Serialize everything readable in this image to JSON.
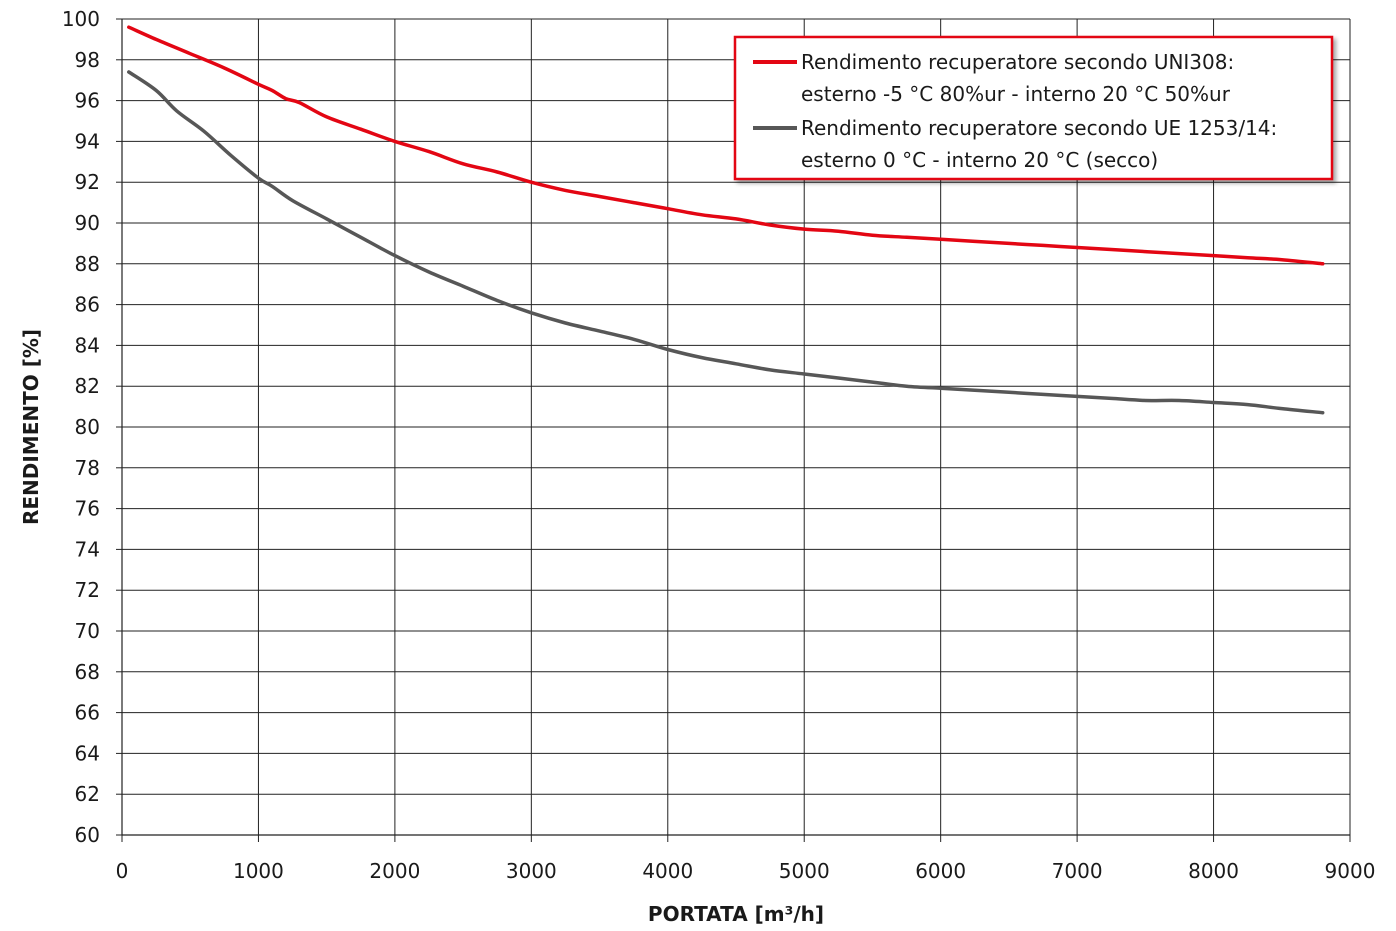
{
  "chart_data": {
    "type": "line",
    "title": "",
    "xlabel": "PORTATA [m³/h]",
    "ylabel": "RENDIMENTO [%]",
    "xlim": [
      0,
      9000
    ],
    "ylim": [
      60,
      100
    ],
    "x_ticks": [
      0,
      1000,
      2000,
      3000,
      4000,
      5000,
      6000,
      7000,
      8000,
      9000
    ],
    "y_ticks": [
      60,
      62,
      64,
      66,
      68,
      70,
      72,
      74,
      76,
      78,
      80,
      82,
      84,
      86,
      88,
      90,
      92,
      94,
      96,
      98,
      100
    ],
    "grid": true,
    "legend_position": "top-right",
    "series": [
      {
        "name": "Rendimento recuperatore secondo UNI308: esterno -5 °C 80%ur - interno 20 °C 50%ur",
        "legend_lines": [
          "Rendimento recuperatore secondo UNI308:",
          "esterno -5 °C 80%ur - interno 20 °C 50%ur"
        ],
        "color": "#e30613",
        "x": [
          50,
          250,
          500,
          750,
          1000,
          1100,
          1200,
          1300,
          1500,
          1750,
          2000,
          2250,
          2500,
          2750,
          3000,
          3250,
          3500,
          3750,
          4000,
          4250,
          4500,
          4750,
          5000,
          5250,
          5500,
          5750,
          6000,
          6250,
          6500,
          6750,
          7000,
          7250,
          7500,
          7750,
          8000,
          8250,
          8500,
          8800
        ],
        "y": [
          99.6,
          99.0,
          98.3,
          97.6,
          96.8,
          96.5,
          96.1,
          95.9,
          95.2,
          94.6,
          94.0,
          93.5,
          92.9,
          92.5,
          92.0,
          91.6,
          91.3,
          91.0,
          90.7,
          90.4,
          90.2,
          89.9,
          89.7,
          89.6,
          89.4,
          89.3,
          89.2,
          89.1,
          89.0,
          88.9,
          88.8,
          88.7,
          88.6,
          88.5,
          88.4,
          88.3,
          88.2,
          88.0
        ]
      },
      {
        "name": "Rendimento recuperatore secondo UE 1253/14: esterno 0 °C - interno 20 °C (secco)",
        "legend_lines": [
          "Rendimento recuperatore secondo UE 1253/14:",
          "esterno 0 °C - interno 20 °C (secco)"
        ],
        "color": "#575757",
        "x": [
          50,
          250,
          400,
          600,
          800,
          1000,
          1100,
          1250,
          1500,
          1750,
          2000,
          2250,
          2500,
          2750,
          3000,
          3250,
          3500,
          3750,
          4000,
          4250,
          4500,
          4750,
          5000,
          5250,
          5500,
          5750,
          6000,
          6250,
          6500,
          6750,
          7000,
          7250,
          7500,
          7750,
          8000,
          8250,
          8500,
          8800
        ],
        "y": [
          97.4,
          96.5,
          95.5,
          94.5,
          93.3,
          92.2,
          91.8,
          91.1,
          90.2,
          89.3,
          88.4,
          87.6,
          86.9,
          86.2,
          85.6,
          85.1,
          84.7,
          84.3,
          83.8,
          83.4,
          83.1,
          82.8,
          82.6,
          82.4,
          82.2,
          82.0,
          81.9,
          81.8,
          81.7,
          81.6,
          81.5,
          81.4,
          81.3,
          81.3,
          81.2,
          81.1,
          80.9,
          80.7
        ]
      }
    ]
  }
}
